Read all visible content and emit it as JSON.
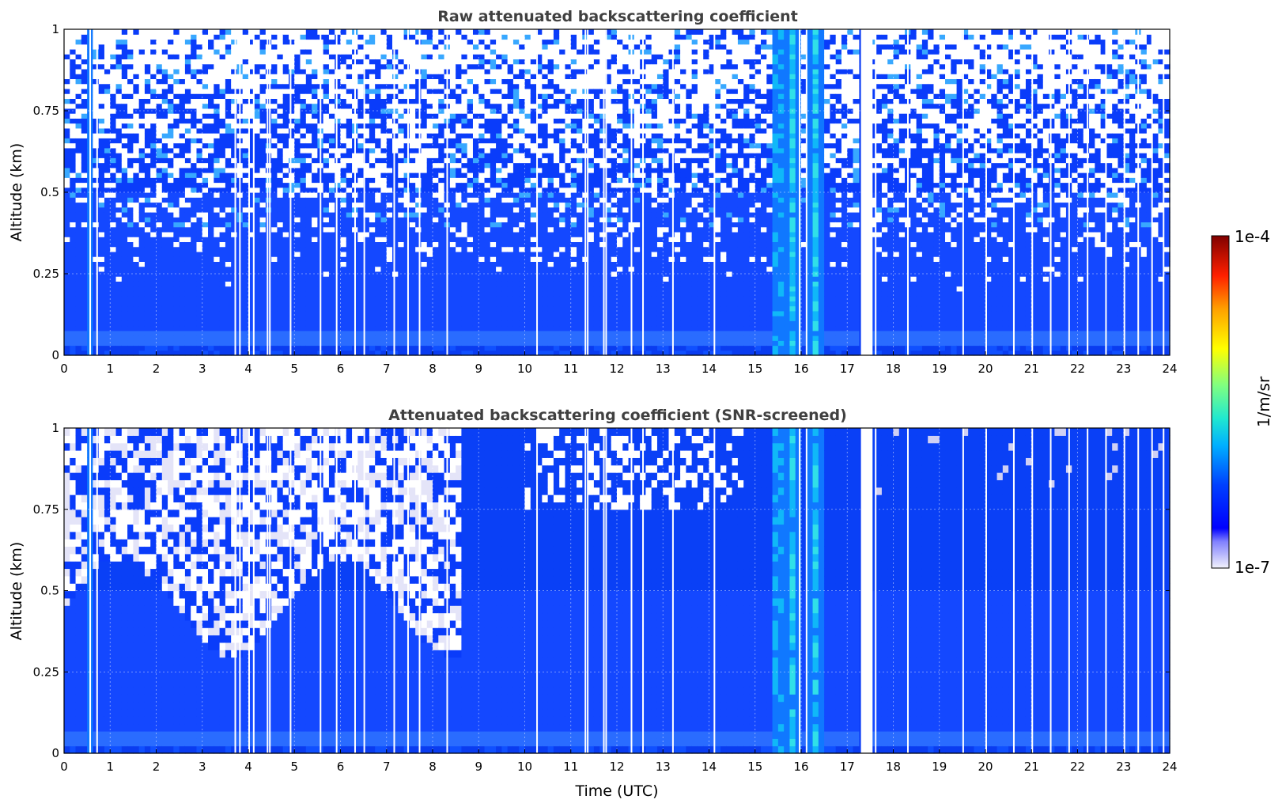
{
  "chart_data": [
    {
      "type": "heatmap",
      "title": "Raw attenuated backscattering coefficient",
      "xlabel": "",
      "ylabel": "Altitude (km)",
      "xlim": [
        0,
        24
      ],
      "ylim": [
        0,
        1
      ],
      "x_ticks": [
        "0",
        "1",
        "2",
        "3",
        "4",
        "5",
        "6",
        "7",
        "8",
        "9",
        "10",
        "11",
        "12",
        "13",
        "14",
        "15",
        "16",
        "17",
        "18",
        "19",
        "20",
        "21",
        "22",
        "23",
        "24"
      ],
      "y_ticks": [
        "0",
        "0.25",
        "0.5",
        "0.75",
        "1"
      ],
      "grid": true,
      "screened": false
    },
    {
      "type": "heatmap",
      "title": "Attenuated backscattering coefficient (SNR-screened)",
      "xlabel": "Time (UTC)",
      "ylabel": "Altitude (km)",
      "xlim": [
        0,
        24
      ],
      "ylim": [
        0,
        1
      ],
      "x_ticks": [
        "0",
        "1",
        "2",
        "3",
        "4",
        "5",
        "6",
        "7",
        "8",
        "9",
        "10",
        "11",
        "12",
        "13",
        "14",
        "15",
        "16",
        "17",
        "18",
        "19",
        "20",
        "21",
        "22",
        "23",
        "24"
      ],
      "y_ticks": [
        "0",
        "0.25",
        "0.5",
        "0.75",
        "1"
      ],
      "grid": true,
      "screened": true
    }
  ],
  "colorbar": {
    "label": "1/m/sr",
    "max_label": "1e-4",
    "min_label": "1e-7",
    "scale": "log"
  },
  "features": {
    "aerosol_plumes_utc": [
      0.6,
      15.5,
      15.8,
      16.3
    ],
    "gap_columns_utc": [
      0.55,
      0.7,
      3.7,
      3.8,
      4.0,
      4.1,
      4.4,
      4.45,
      4.9,
      5.55,
      5.9,
      6.3,
      6.5,
      7.15,
      7.45,
      7.7,
      8.3,
      10.25,
      11.3,
      11.35,
      11.7,
      11.75,
      12.3,
      12.55,
      13.2,
      14.1,
      15.95,
      16.1,
      17.3,
      17.35,
      17.4,
      17.5,
      17.6,
      18.3,
      19.5,
      20.0,
      20.6,
      21.0,
      21.4,
      21.8,
      22.2,
      22.6,
      23.0,
      23.3,
      23.6,
      23.85
    ],
    "missing_data_utc": [
      [
        17.3,
        17.55
      ]
    ]
  }
}
